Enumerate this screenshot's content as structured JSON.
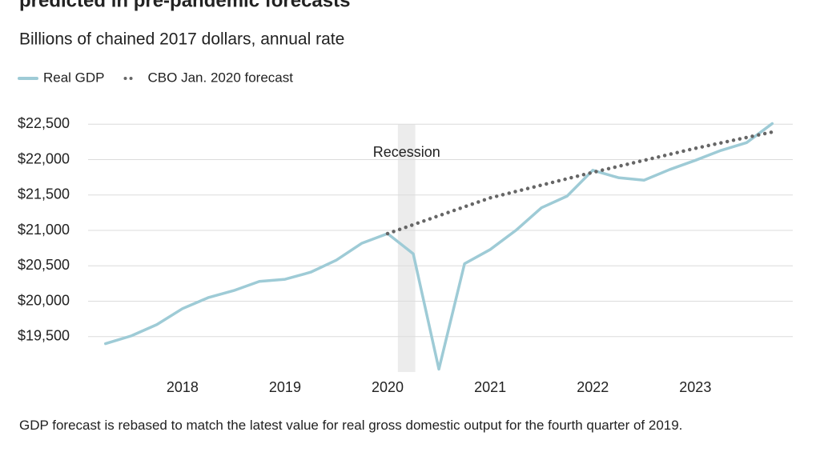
{
  "chart_data": {
    "type": "line",
    "title": "predicted in pre-pandemic forecasts",
    "subtitle": "Billions of chained 2017 dollars, annual rate",
    "note": "GDP forecast is rebased to match the latest value for real gross domestic output for the fourth quarter of 2019.",
    "recession": {
      "label": "Recession",
      "x": [
        2020.1,
        2020.27
      ],
      "color": "#ececec"
    },
    "series": [
      {
        "name": "Real GDP",
        "color": "#9ecbd6",
        "style": "solid",
        "x": [
          2017.25,
          2017.5,
          2017.75,
          2018.0,
          2018.25,
          2018.5,
          2018.75,
          2019.0,
          2019.25,
          2019.5,
          2019.75,
          2020.0,
          2020.25,
          2020.5,
          2020.75,
          2021.0,
          2021.25,
          2021.5,
          2021.75,
          2022.0,
          2022.25,
          2022.5,
          2022.75,
          2023.0,
          2023.25,
          2023.5,
          2023.75
        ],
        "values": [
          19400,
          19510,
          19670,
          19895,
          20050,
          20150,
          20280,
          20310,
          20410,
          20580,
          20820,
          20955,
          20670,
          19040,
          20530,
          20730,
          21000,
          21320,
          21485,
          21850,
          21745,
          21710,
          21860,
          21990,
          22130,
          22240,
          22510
        ]
      },
      {
        "name": "CBO Jan. 2020 forecast",
        "color": "#666666",
        "style": "dotted",
        "x": [
          2020.0,
          2021.0,
          2022.0,
          2023.0,
          2023.75
        ],
        "values": [
          20955,
          21460,
          21820,
          22160,
          22390
        ]
      }
    ],
    "xlim": [
      2017.08,
      2023.95
    ],
    "xticks": [
      2018,
      2019,
      2020,
      2021,
      2022,
      2023
    ],
    "ylim": [
      19000,
      22560
    ],
    "yticks": [
      {
        "value": 19500,
        "label": "$19,500"
      },
      {
        "value": 20000,
        "label": "$20,000"
      },
      {
        "value": 20500,
        "label": "$20,500"
      },
      {
        "value": 21000,
        "label": "$21,000"
      },
      {
        "value": 21500,
        "label": "$21,500"
      },
      {
        "value": 22000,
        "label": "$22,000"
      },
      {
        "value": 22500,
        "label": "$22,500"
      }
    ],
    "grid": true
  }
}
